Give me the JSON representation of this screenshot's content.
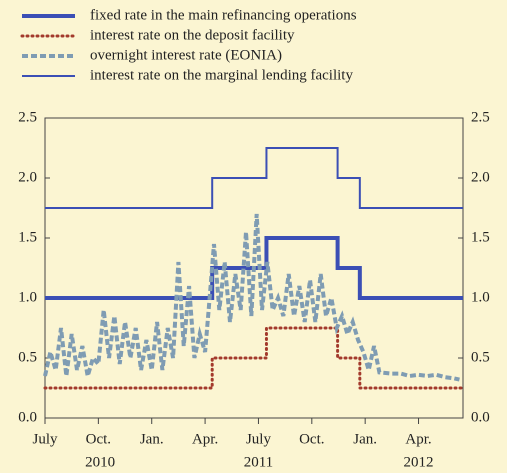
{
  "chart_data": {
    "type": "line",
    "xlim": [
      0,
      23.5
    ],
    "ylim": [
      0,
      2.5
    ],
    "yticks": [
      {
        "value": 0,
        "label": "0.0"
      },
      {
        "value": 0.5,
        "label": "0.5"
      },
      {
        "value": 1,
        "label": "1.0"
      },
      {
        "value": 1.5,
        "label": "1.5"
      },
      {
        "value": 2,
        "label": "2.0"
      },
      {
        "value": 2.5,
        "label": "2.5"
      }
    ],
    "xticks": [
      {
        "value": 0,
        "label": "July"
      },
      {
        "value": 3,
        "label": "Oct."
      },
      {
        "value": 6,
        "label": "Jan."
      },
      {
        "value": 9,
        "label": "Apr."
      },
      {
        "value": 12,
        "label": "July"
      },
      {
        "value": 15,
        "label": "Oct."
      },
      {
        "value": 18,
        "label": "Jan."
      },
      {
        "value": 21,
        "label": "Apr."
      }
    ],
    "years": [
      {
        "value": 3.1,
        "label": "2010"
      },
      {
        "value": 12,
        "label": "2011"
      },
      {
        "value": 21,
        "label": "2012"
      }
    ],
    "series": [
      {
        "name": "fixed rate in the main refinancing operations",
        "color": "#3b4fb5",
        "style": "thick",
        "step": true,
        "x": [
          0,
          9.4,
          12.45,
          16.45,
          17.7,
          23.5
        ],
        "values": [
          1,
          1.25,
          1.5,
          1.25,
          1,
          1
        ]
      },
      {
        "name": "interest rate on the deposit facility",
        "color": "#a33a2c",
        "style": "dotted",
        "step": true,
        "x": [
          0,
          9.4,
          12.45,
          16.45,
          17.7,
          23.5
        ],
        "values": [
          0.25,
          0.5,
          0.75,
          0.5,
          0.25,
          0.25
        ]
      },
      {
        "name": "overnight interest rate (EONIA)",
        "color": "#7f9cb3",
        "style": "dashed",
        "step": false,
        "x": [
          0,
          0.3,
          0.6,
          0.9,
          1.2,
          1.5,
          1.8,
          2.1,
          2.4,
          2.7,
          3.0,
          3.3,
          3.6,
          3.9,
          4.2,
          4.5,
          4.8,
          5.1,
          5.4,
          5.7,
          6.0,
          6.3,
          6.6,
          6.9,
          7.2,
          7.5,
          7.8,
          8.1,
          8.4,
          8.7,
          9.0,
          9.2,
          9.5,
          9.8,
          10.1,
          10.4,
          10.7,
          11.0,
          11.3,
          11.6,
          11.9,
          12.2,
          12.5,
          12.8,
          13.1,
          13.4,
          13.7,
          14.0,
          14.3,
          14.6,
          14.9,
          15.2,
          15.5,
          15.8,
          16.1,
          16.4,
          16.7,
          17.0,
          17.3,
          17.6,
          17.9,
          18.2,
          18.5,
          18.8,
          19.5,
          20,
          20.5,
          21,
          21.5,
          22,
          22.5,
          23,
          23.3
        ],
        "values": [
          0.35,
          0.55,
          0.4,
          0.75,
          0.35,
          0.7,
          0.4,
          0.6,
          0.35,
          0.5,
          0.45,
          0.9,
          0.5,
          0.85,
          0.45,
          0.8,
          0.5,
          0.75,
          0.4,
          0.65,
          0.4,
          0.8,
          0.4,
          0.75,
          0.5,
          1.3,
          0.6,
          1.1,
          0.5,
          0.7,
          0.55,
          0.9,
          1.45,
          0.9,
          1.3,
          0.8,
          1.2,
          0.9,
          1.55,
          0.85,
          1.7,
          0.9,
          1.3,
          0.9,
          1.0,
          0.85,
          1.2,
          0.85,
          1.1,
          0.8,
          1.15,
          0.8,
          1.2,
          0.85,
          1.0,
          0.75,
          0.85,
          0.7,
          0.8,
          0.65,
          0.55,
          0.4,
          0.6,
          0.38,
          0.37,
          0.37,
          0.35,
          0.36,
          0.35,
          0.36,
          0.34,
          0.33,
          0.32
        ]
      },
      {
        "name": "interest rate on the marginal lending facility",
        "color": "#3b4fb5",
        "style": "thin",
        "step": true,
        "x": [
          0,
          9.4,
          12.45,
          16.45,
          17.7,
          23.5
        ],
        "values": [
          1.75,
          2,
          2.25,
          2,
          1.75,
          1.75
        ]
      }
    ]
  }
}
